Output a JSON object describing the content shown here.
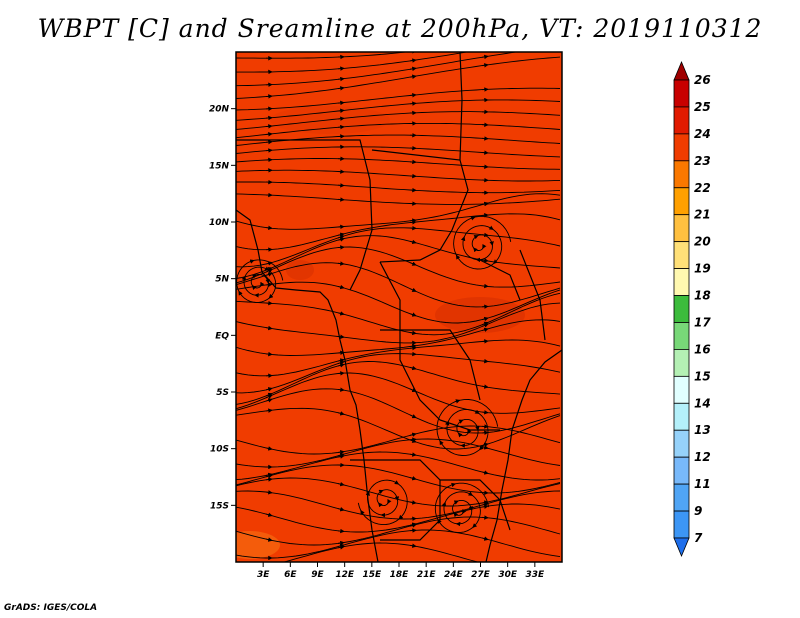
{
  "title": "WBPT [C] and Sreamline at 200hPa, VT: 2019110312",
  "credit": "GrADS: IGES/COLA",
  "map": {
    "lon_range": [
      0,
      36
    ],
    "lat_range": [
      -20,
      25
    ],
    "fill_color": "#f03c00",
    "x_ticks": [
      {
        "value": 3,
        "label": "3E"
      },
      {
        "value": 6,
        "label": "6E"
      },
      {
        "value": 9,
        "label": "9E"
      },
      {
        "value": 12,
        "label": "12E"
      },
      {
        "value": 15,
        "label": "15E"
      },
      {
        "value": 18,
        "label": "18E"
      },
      {
        "value": 21,
        "label": "21E"
      },
      {
        "value": 24,
        "label": "24E"
      },
      {
        "value": 27,
        "label": "27E"
      },
      {
        "value": 30,
        "label": "30E"
      },
      {
        "value": 33,
        "label": "33E"
      }
    ],
    "y_ticks": [
      {
        "value": 20,
        "label": "20N"
      },
      {
        "value": 15,
        "label": "15N"
      },
      {
        "value": 10,
        "label": "10N"
      },
      {
        "value": 5,
        "label": "5N"
      },
      {
        "value": 0,
        "label": "EQ"
      },
      {
        "value": -5,
        "label": "5S"
      },
      {
        "value": -10,
        "label": "10S"
      },
      {
        "value": -15,
        "label": "15S"
      }
    ]
  },
  "colorbar": {
    "labels": [
      "26",
      "25",
      "24",
      "23",
      "22",
      "21",
      "20",
      "19",
      "18",
      "17",
      "16",
      "15",
      "14",
      "13",
      "12",
      "11",
      "9",
      "7"
    ],
    "colors": [
      "#a00000",
      "#c80000",
      "#e11a00",
      "#f03c00",
      "#fa7800",
      "#ffa000",
      "#ffc040",
      "#ffe078",
      "#fff8b0",
      "#3cbc3c",
      "#78d878",
      "#b4f0b4",
      "#e1ffff",
      "#b4f0fa",
      "#96d2fa",
      "#78b9fa",
      "#50a5f5",
      "#3c96f5",
      "#1e6eeb"
    ]
  }
}
